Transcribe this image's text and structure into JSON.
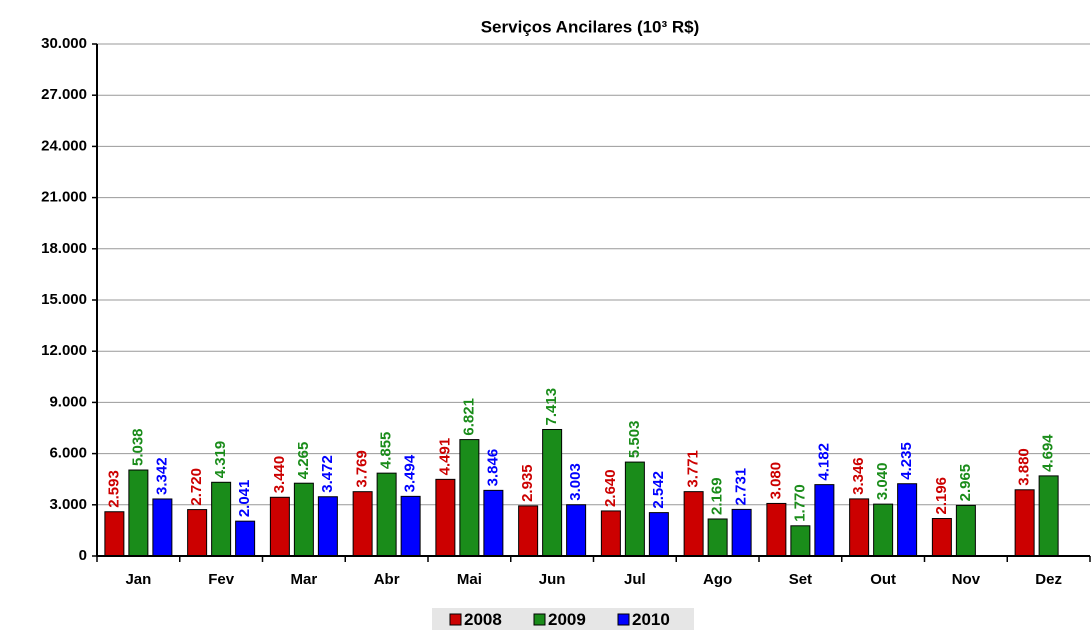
{
  "chart_data": {
    "type": "bar",
    "title": "Serviços Ancilares (10³ R$)",
    "categories": [
      "Jan",
      "Fev",
      "Mar",
      "Abr",
      "Mai",
      "Jun",
      "Jul",
      "Ago",
      "Set",
      "Out",
      "Nov",
      "Dez"
    ],
    "series": [
      {
        "name": "2008",
        "color": "#cc0000",
        "values": [
          2593,
          2720,
          3440,
          3769,
          4491,
          2935,
          2640,
          3771,
          3080,
          3346,
          2196,
          3880
        ],
        "value_labels": [
          "2.593",
          "2.720",
          "3.440",
          "3.769",
          "4.491",
          "2.935",
          "2.640",
          "3.771",
          "3.080",
          "3.346",
          "2.196",
          "3.880"
        ]
      },
      {
        "name": "2009",
        "color": "#1a8c1a",
        "values": [
          5038,
          4319,
          4265,
          4855,
          6821,
          7413,
          5503,
          2169,
          1770,
          3040,
          2965,
          4694
        ],
        "value_labels": [
          "5.038",
          "4.319",
          "4.265",
          "4.855",
          "6.821",
          "7.413",
          "5.503",
          "2.169",
          "1.770",
          "3.040",
          "2.965",
          "4.694"
        ]
      },
      {
        "name": "2010",
        "color": "#0000ff",
        "values": [
          3342,
          2041,
          3472,
          3494,
          3846,
          3003,
          2542,
          2731,
          4182,
          4235,
          null,
          null
        ],
        "value_labels": [
          "3.342",
          "2.041",
          "3.472",
          "3.494",
          "3.846",
          "3.003",
          "2.542",
          "2.731",
          "4.182",
          "4.235",
          null,
          null
        ]
      }
    ],
    "ylim": [
      0,
      30000
    ],
    "yticks": [
      0,
      {
        "value": 3000,
        "label": "3.000"
      },
      {
        "value": 6000,
        "label": "6.000"
      },
      {
        "value": 9000,
        "label": "9.000"
      },
      {
        "value": 12000,
        "label": "12.000"
      },
      {
        "value": 15000,
        "label": "15.000"
      },
      {
        "value": 18000,
        "label": "18.000"
      },
      {
        "value": 21000,
        "label": "21.000"
      },
      {
        "value": 24000,
        "label": "24.000"
      },
      {
        "value": 27000,
        "label": "27.000"
      },
      {
        "value": 30000,
        "label": "30.000"
      }
    ],
    "grid": true,
    "legend": "bottom"
  }
}
